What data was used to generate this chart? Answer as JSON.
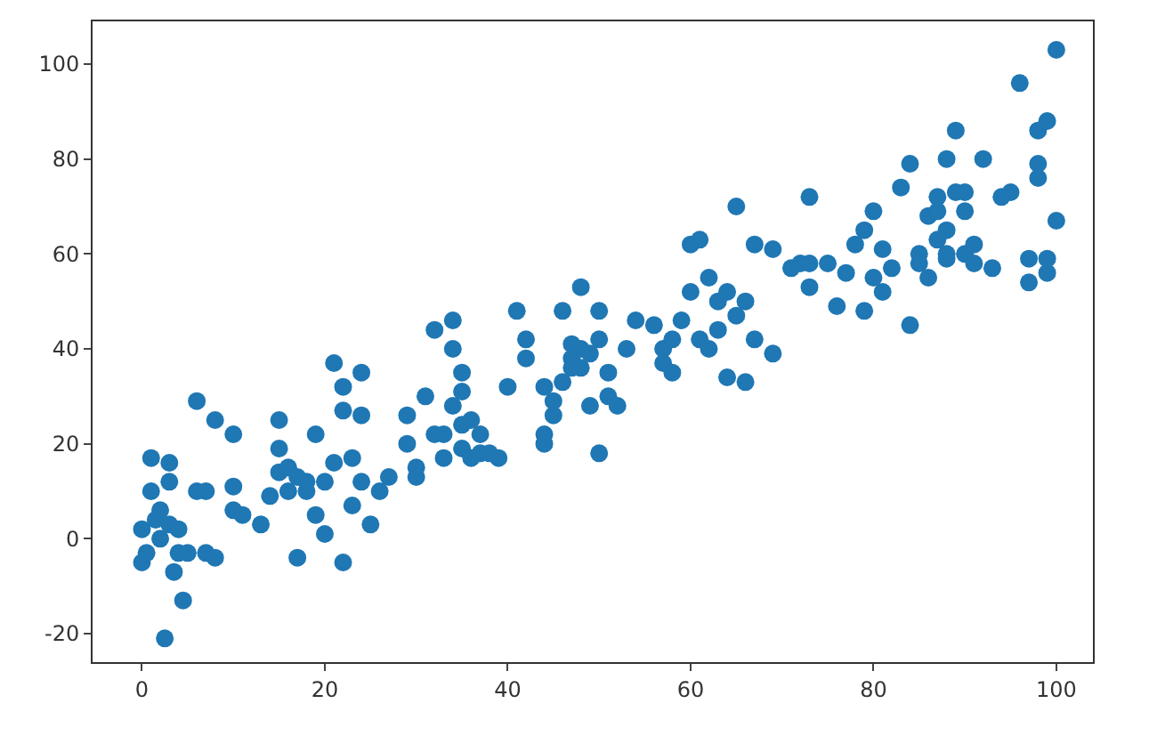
{
  "chart_data": {
    "type": "scatter",
    "marker": "circle",
    "xlim": [
      -5.4,
      104
    ],
    "ylim": [
      -26,
      109
    ],
    "xticks": [
      0,
      20,
      40,
      60,
      80,
      100
    ],
    "yticks": [
      -20,
      0,
      20,
      40,
      60,
      80,
      100
    ],
    "series": [
      {
        "color": "#1f77b4",
        "x": [
          0,
          0,
          0.5,
          1,
          1,
          1.5,
          2,
          2,
          2.5,
          3,
          3,
          3,
          3.5,
          4,
          4,
          4.5,
          5,
          6,
          6,
          7,
          7,
          8,
          8,
          10,
          10,
          10,
          11,
          13,
          14,
          15,
          15,
          15,
          16,
          16,
          17,
          17,
          18,
          18,
          19,
          19,
          20,
          20,
          21,
          21,
          22,
          22,
          22,
          23,
          23,
          24,
          24,
          24,
          25,
          26,
          27,
          29,
          29,
          30,
          30,
          31,
          32,
          32,
          33,
          33,
          34,
          34,
          34,
          35,
          35,
          35,
          35,
          36,
          36,
          37,
          37,
          38,
          39,
          40,
          41,
          42,
          42,
          44,
          44,
          44,
          45,
          45,
          46,
          46,
          47,
          47,
          47,
          48,
          48,
          48,
          49,
          49,
          50,
          50,
          50,
          51,
          51,
          52,
          53,
          54,
          56,
          57,
          57,
          58,
          58,
          59,
          60,
          60,
          61,
          61,
          62,
          62,
          63,
          63,
          64,
          64,
          65,
          65,
          66,
          66,
          67,
          67,
          69,
          69,
          71,
          72,
          73,
          73,
          73,
          75,
          76,
          77,
          78,
          79,
          79,
          80,
          80,
          81,
          81,
          82,
          83,
          84,
          84,
          85,
          85,
          86,
          86,
          87,
          87,
          87,
          88,
          88,
          88,
          88,
          89,
          89,
          90,
          90,
          90,
          91,
          91,
          92,
          93,
          94,
          95,
          96,
          97,
          97,
          98,
          98,
          98,
          99,
          99,
          99,
          100,
          100
        ],
        "values": [
          -5,
          2,
          -3,
          10,
          17,
          4,
          0,
          6,
          -21,
          16,
          12,
          3,
          -7,
          -3,
          2,
          -13,
          -3,
          29,
          10,
          -3,
          10,
          -4,
          25,
          22,
          11,
          6,
          5,
          3,
          9,
          25,
          19,
          14,
          15,
          10,
          -4,
          13,
          12,
          10,
          5,
          22,
          1,
          12,
          16,
          37,
          27,
          32,
          -5,
          17,
          7,
          35,
          26,
          12,
          3,
          10,
          13,
          26,
          20,
          13,
          15,
          30,
          22,
          44,
          22,
          17,
          46,
          40,
          28,
          35,
          31,
          24,
          19,
          17,
          25,
          22,
          18,
          18,
          17,
          32,
          48,
          38,
          42,
          32,
          22,
          20,
          26,
          29,
          48,
          33,
          38,
          41,
          36,
          53,
          40,
          36,
          39,
          28,
          42,
          18,
          48,
          30,
          35,
          28,
          40,
          46,
          45,
          40,
          37,
          42,
          35,
          46,
          52,
          62,
          63,
          42,
          55,
          40,
          50,
          44,
          52,
          34,
          47,
          70,
          50,
          33,
          42,
          62,
          39,
          61,
          57,
          58,
          72,
          58,
          53,
          58,
          49,
          56,
          62,
          65,
          48,
          69,
          55,
          52,
          61,
          57,
          74,
          45,
          79,
          60,
          58,
          55,
          68,
          72,
          69,
          63,
          59,
          60,
          80,
          65,
          86,
          73,
          73,
          69,
          60,
          58,
          62,
          80,
          57,
          72,
          73,
          96,
          54,
          59,
          86,
          79,
          76,
          88,
          56,
          59,
          103,
          67
        ]
      }
    ]
  }
}
